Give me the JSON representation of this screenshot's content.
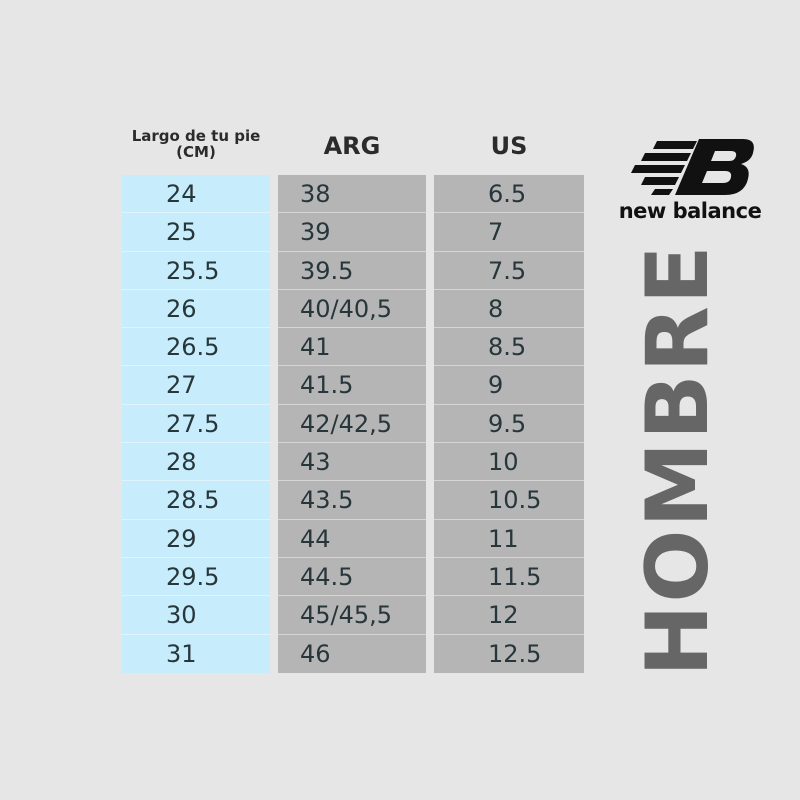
{
  "headers": {
    "cm": "Largo de tu pie (CM)",
    "arg": "ARG",
    "us": "US"
  },
  "rows": [
    {
      "cm": "24",
      "arg": "38",
      "us": "6.5"
    },
    {
      "cm": "25",
      "arg": "39",
      "us": "7"
    },
    {
      "cm": "25.5",
      "arg": "39.5",
      "us": "7.5"
    },
    {
      "cm": "26",
      "arg": "40/40,5",
      "us": "8"
    },
    {
      "cm": "26.5",
      "arg": "41",
      "us": "8.5"
    },
    {
      "cm": "27",
      "arg": "41.5",
      "us": "9"
    },
    {
      "cm": "27.5",
      "arg": "42/42,5",
      "us": "9.5"
    },
    {
      "cm": "28",
      "arg": "43",
      "us": "10"
    },
    {
      "cm": "28.5",
      "arg": "43.5",
      "us": "10.5"
    },
    {
      "cm": "29",
      "arg": "44",
      "us": "11"
    },
    {
      "cm": "29.5",
      "arg": "44.5",
      "us": "11.5"
    },
    {
      "cm": "30",
      "arg": "45/45,5",
      "us": "12"
    },
    {
      "cm": "31",
      "arg": "46",
      "us": "12.5"
    }
  ],
  "brand": {
    "name": "new balance",
    "logo_icon": "nb-logo-icon"
  },
  "label": "HOMBRE",
  "colors": {
    "background": "#e6e6e6",
    "cm_column": "#c7ecfb",
    "size_columns": "#b5b5b5",
    "label": "#666666"
  }
}
